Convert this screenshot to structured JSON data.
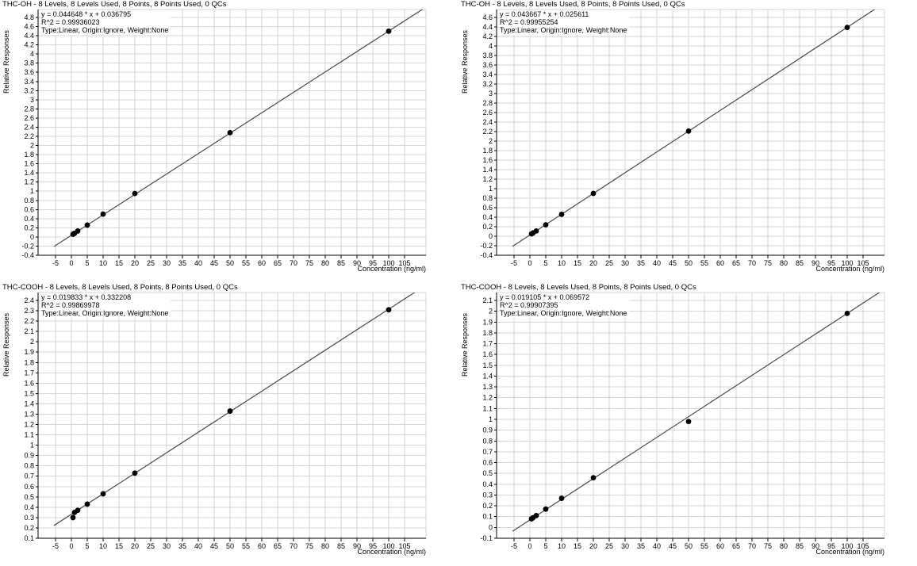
{
  "window": {
    "background": "#ffffff"
  },
  "colors": {
    "grid": "#d6d6d6",
    "axis": "#000000",
    "tick_text": "#000000",
    "point": "#000000",
    "fit_line": "#4a4a4a"
  },
  "chart_data": [
    {
      "id": "top-left",
      "type": "scatter",
      "title": "THC-OH - 8 Levels, 8 Levels Used, 8 Points, 8 Points Used, 0 QCs",
      "equation": "y = 0.044648 * x  + 0.036795",
      "r_squared": "R^2 = 0.99936023",
      "fit_type": "Type:Linear, Origin:Ignore, Weight:None",
      "slope": 0.044648,
      "intercept": 0.036795,
      "x": [
        0.5,
        1,
        2,
        5,
        10,
        20,
        50,
        100
      ],
      "y": [
        0.06,
        0.08,
        0.13,
        0.26,
        0.5,
        0.95,
        2.28,
        4.5
      ],
      "xlabel": "Concentration (ng/ml)",
      "ylabel": "Relative Responses",
      "x_ticks": {
        "min": -5,
        "max": 105,
        "step": 5
      },
      "y_ticks": {
        "min": -0.4,
        "max": 4.8,
        "step": 0.2
      },
      "grid": true,
      "legend": false
    },
    {
      "id": "top-right",
      "type": "scatter",
      "title": "THC-OH - 8 Levels, 8 Levels Used, 8 Points, 8 Points Used, 0 QCs",
      "equation": "y = 0.043667 * x  + 0.025611",
      "r_squared": "R^2 = 0.99955254",
      "fit_type": "Type:Linear, Origin:Ignore, Weight:None",
      "slope": 0.043667,
      "intercept": 0.025611,
      "x": [
        0.5,
        1,
        2,
        5,
        10,
        20,
        50,
        100
      ],
      "y": [
        0.05,
        0.07,
        0.11,
        0.24,
        0.46,
        0.9,
        2.21,
        4.39
      ],
      "xlabel": "Concentration (ng/ml)",
      "ylabel": "Relative Responses",
      "x_ticks": {
        "min": -5,
        "max": 105,
        "step": 5
      },
      "y_ticks": {
        "min": -0.4,
        "max": 4.6,
        "step": 0.2
      },
      "grid": true,
      "legend": false
    },
    {
      "id": "bottom-left",
      "type": "scatter",
      "title": "THC-COOH - 8 Levels, 8 Levels Used, 8 Points, 8 Points Used, 0 QCs",
      "equation": "y = 0.019833 * x  + 0.332208",
      "r_squared": "R^2 = 0.99869978",
      "fit_type": "Type:Linear, Origin:Ignore, Weight:None",
      "slope": 0.019833,
      "intercept": 0.332208,
      "x": [
        0.5,
        1,
        2,
        5,
        10,
        20,
        50,
        100
      ],
      "y": [
        0.3,
        0.35,
        0.37,
        0.43,
        0.53,
        0.73,
        1.33,
        2.31
      ],
      "xlabel": "Concentration (ng/ml)",
      "ylabel": "Relative Responses",
      "x_ticks": {
        "min": -5,
        "max": 105,
        "step": 5
      },
      "y_ticks": {
        "min": 0.1,
        "max": 2.4,
        "step": 0.1
      },
      "grid": true,
      "legend": false
    },
    {
      "id": "bottom-right",
      "type": "scatter",
      "title": "THC-COOH - 8 Levels, 8 Levels Used, 8 Points, 8 Points Used, 0 QCs",
      "equation": "y = 0.019105 * x  + 0.069572",
      "r_squared": "R^2 = 0.99907395",
      "fit_type": "Type:Linear, Origin:Ignore, Weight:None",
      "slope": 0.019105,
      "intercept": 0.069572,
      "x": [
        0.5,
        1,
        2,
        5,
        10,
        20,
        50,
        100
      ],
      "y": [
        0.08,
        0.09,
        0.11,
        0.17,
        0.27,
        0.46,
        0.98,
        1.98
      ],
      "xlabel": "Concentration (ng/ml)",
      "ylabel": "Relative Responses",
      "x_ticks": {
        "min": -5,
        "max": 105,
        "step": 5
      },
      "y_ticks": {
        "min": -0.1,
        "max": 2.1,
        "step": 0.1
      },
      "grid": true,
      "legend": false
    }
  ]
}
